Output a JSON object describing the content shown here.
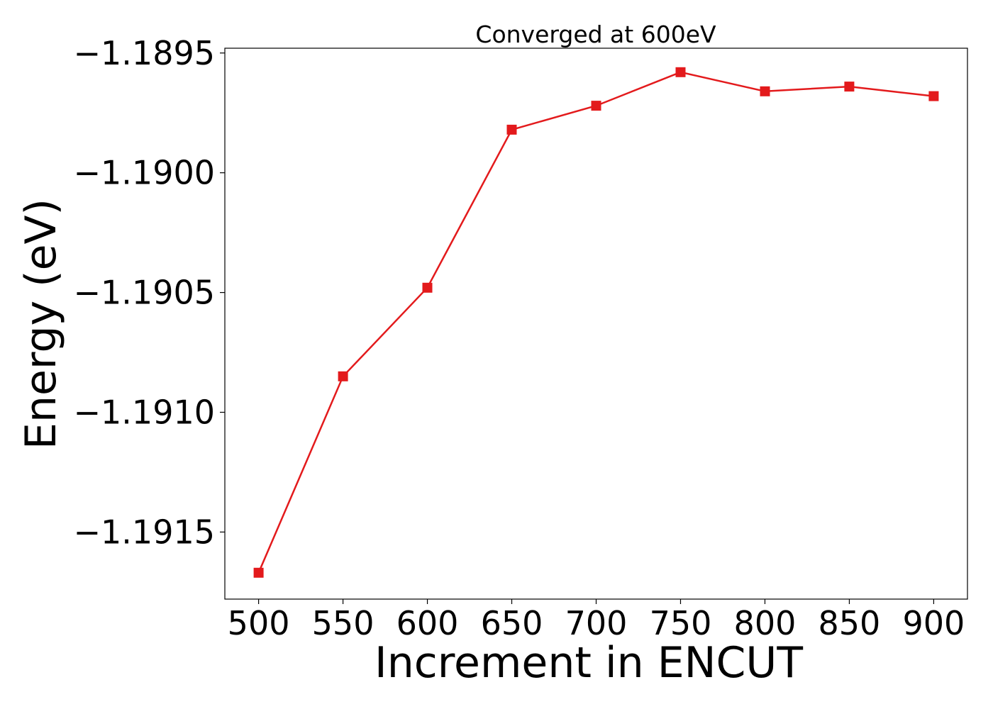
{
  "chart_data": {
    "type": "line",
    "title": "Converged at 600eV",
    "xlabel": "Increment in ENCUT",
    "ylabel": "Energy (eV)",
    "x": [
      500,
      550,
      600,
      650,
      700,
      750,
      800,
      850,
      900
    ],
    "series": [
      {
        "values": [
          -1.19167,
          -1.19085,
          -1.19048,
          -1.18982,
          -1.18972,
          -1.18958,
          -1.18966,
          -1.18964,
          -1.18968
        ],
        "color": "#e31a1c",
        "marker": "square"
      }
    ],
    "xticks": [
      500,
      550,
      600,
      650,
      700,
      750,
      800,
      850,
      900
    ],
    "xtick_labels": [
      "500",
      "550",
      "600",
      "650",
      "700",
      "750",
      "800",
      "850",
      "900"
    ],
    "yticks": [
      -1.1915,
      -1.191,
      -1.1905,
      -1.19,
      -1.1895
    ],
    "ytick_labels": [
      "−1.1915",
      "−1.1910",
      "−1.1905",
      "−1.1900",
      "−1.1895"
    ],
    "xlim": [
      480,
      920
    ],
    "ylim": [
      -1.19178,
      -1.18948
    ],
    "grid": false,
    "legend": "none"
  }
}
